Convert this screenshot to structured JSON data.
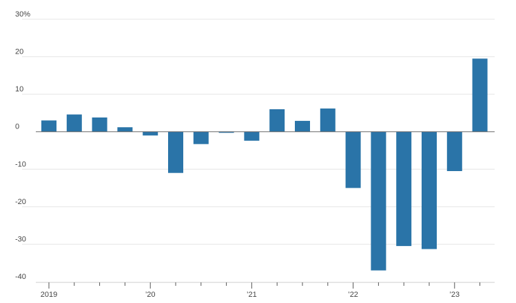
{
  "chart_data": {
    "type": "bar",
    "colors": {
      "bar": "#2a74a8"
    },
    "ylim": [
      -40,
      30
    ],
    "y_ticks": [
      {
        "value": 30,
        "label": "30%"
      },
      {
        "value": 20,
        "label": "20"
      },
      {
        "value": 10,
        "label": "10"
      },
      {
        "value": 0,
        "label": "0"
      },
      {
        "value": -10,
        "label": "-10"
      },
      {
        "value": -20,
        "label": "-20"
      },
      {
        "value": -30,
        "label": "-30"
      },
      {
        "value": -40,
        "label": "-40"
      }
    ],
    "x_labels": [
      "2019",
      "’20",
      "’21",
      "’22",
      "’23"
    ],
    "categories": [
      "2019 Q1",
      "2019 Q2",
      "2019 Q3",
      "2019 Q4",
      "2020 Q1",
      "2020 Q2",
      "2020 Q3",
      "2020 Q4",
      "2021 Q1",
      "2021 Q2",
      "2021 Q3",
      "2021 Q4",
      "2022 Q1",
      "2022 Q2",
      "2022 Q3",
      "2022 Q4",
      "2023 Q1",
      "2023 Q2"
    ],
    "values": [
      3.0,
      4.6,
      3.8,
      1.2,
      -1.0,
      -11.0,
      -3.3,
      -0.3,
      -2.4,
      6.0,
      2.9,
      6.2,
      -15.0,
      -37.0,
      -30.5,
      -31.3,
      -10.5,
      19.5
    ]
  }
}
